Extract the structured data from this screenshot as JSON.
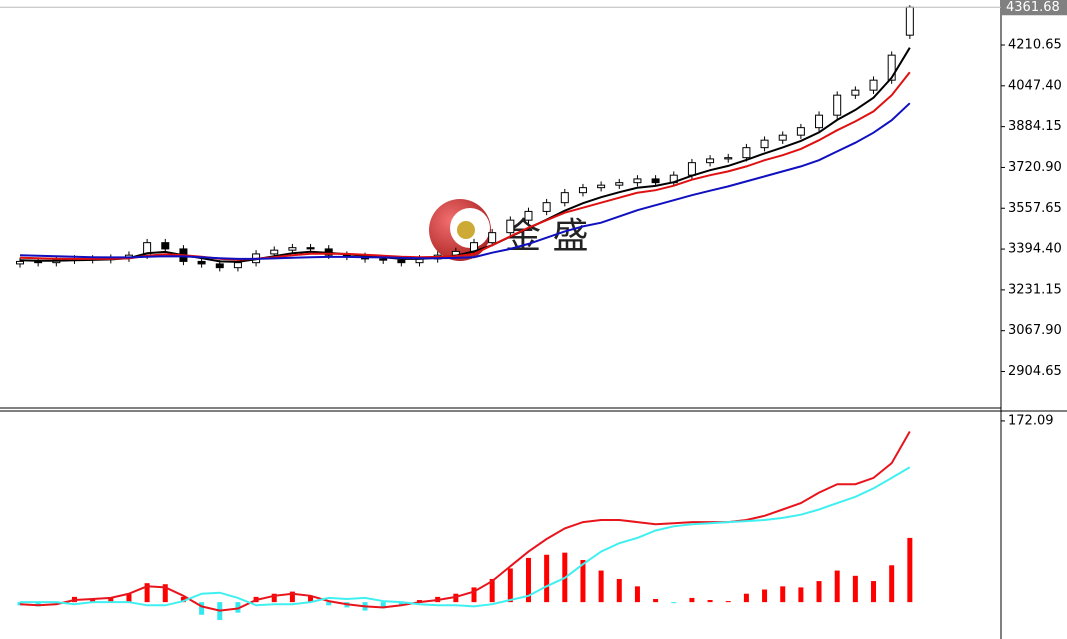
{
  "chart_data": [
    {
      "type": "candlestick",
      "watermark": "金 盛",
      "open": [
        3335,
        3345,
        3340,
        3350,
        3355,
        3352,
        3358,
        3370,
        3420,
        3395,
        3345,
        3335,
        3320,
        3340,
        3375,
        3390,
        3400,
        3395,
        3370,
        3365,
        3355,
        3350,
        3340,
        3355,
        3370,
        3385,
        3420,
        3460,
        3510,
        3545,
        3580,
        3620,
        3640,
        3650,
        3660,
        3675,
        3660,
        3690,
        3740,
        3755,
        3760,
        3800,
        3830,
        3850,
        3880,
        3930,
        4010,
        4030,
        4070,
        4250
      ],
      "high": [
        3360,
        3360,
        3365,
        3370,
        3370,
        3373,
        3385,
        3435,
        3435,
        3410,
        3360,
        3350,
        3355,
        3390,
        3405,
        3415,
        3415,
        3410,
        3385,
        3380,
        3370,
        3365,
        3370,
        3385,
        3400,
        3435,
        3475,
        3525,
        3560,
        3595,
        3635,
        3655,
        3665,
        3675,
        3690,
        3690,
        3705,
        3755,
        3770,
        3775,
        3815,
        3845,
        3865,
        3895,
        3945,
        4025,
        4045,
        4085,
        4185,
        4370
      ],
      "low": [
        3320,
        3325,
        3325,
        3335,
        3337,
        3337,
        3343,
        3355,
        3380,
        3330,
        3320,
        3305,
        3305,
        3325,
        3360,
        3375,
        3380,
        3355,
        3350,
        3340,
        3335,
        3325,
        3325,
        3340,
        3355,
        3370,
        3405,
        3445,
        3495,
        3530,
        3565,
        3605,
        3625,
        3635,
        3645,
        3645,
        3645,
        3675,
        3725,
        3740,
        3745,
        3785,
        3815,
        3835,
        3865,
        3915,
        3995,
        4015,
        4055,
        4235
      ],
      "close": [
        3345,
        3340,
        3350,
        3355,
        3352,
        3358,
        3370,
        3420,
        3395,
        3345,
        3335,
        3320,
        3340,
        3375,
        3390,
        3400,
        3395,
        3370,
        3365,
        3355,
        3350,
        3340,
        3355,
        3370,
        3385,
        3420,
        3460,
        3510,
        3545,
        3580,
        3620,
        3640,
        3650,
        3660,
        3675,
        3660,
        3690,
        3740,
        3755,
        3760,
        3800,
        3830,
        3850,
        3880,
        3930,
        4010,
        4030,
        4070,
        4170,
        4361.68
      ],
      "up_color": "#ffffff",
      "down_color": "#000000",
      "wick_color": "#000000",
      "series": [
        {
          "color": "#000000",
          "values": [
            3350,
            3348,
            3348,
            3350,
            3351,
            3353,
            3358,
            3378,
            3383,
            3370,
            3358,
            3345,
            3343,
            3354,
            3366,
            3378,
            3384,
            3379,
            3374,
            3368,
            3362,
            3355,
            3355,
            3360,
            3368,
            3385,
            3410,
            3444,
            3478,
            3512,
            3548,
            3578,
            3602,
            3622,
            3640,
            3647,
            3662,
            3688,
            3710,
            3727,
            3751,
            3777,
            3801,
            3827,
            3861,
            3911,
            3951,
            4000,
            4080,
            4200
          ]
        },
        {
          "color": "#e01010",
          "values": [
            3360,
            3358,
            3356,
            3355,
            3355,
            3355,
            3357,
            3368,
            3374,
            3370,
            3364,
            3356,
            3352,
            3356,
            3362,
            3370,
            3376,
            3376,
            3375,
            3372,
            3368,
            3364,
            3362,
            3363,
            3366,
            3375,
            3410,
            3445,
            3480,
            3510,
            3540,
            3560,
            3580,
            3600,
            3620,
            3630,
            3648,
            3672,
            3690,
            3705,
            3725,
            3750,
            3770,
            3795,
            3830,
            3870,
            3905,
            3945,
            4010,
            4102
          ]
        },
        {
          "color": "#1010c0",
          "values": [
            3370,
            3368,
            3366,
            3364,
            3362,
            3361,
            3361,
            3364,
            3366,
            3365,
            3362,
            3358,
            3355,
            3355,
            3357,
            3360,
            3362,
            3363,
            3363,
            3362,
            3361,
            3359,
            3358,
            3358,
            3359,
            3362,
            3380,
            3395,
            3415,
            3440,
            3465,
            3485,
            3500,
            3525,
            3550,
            3570,
            3590,
            3610,
            3628,
            3645,
            3665,
            3685,
            3705,
            3725,
            3750,
            3785,
            3820,
            3860,
            3910,
            3978
          ]
        }
      ],
      "ylim": [
        2758.65,
        4390.65
      ],
      "yticks": [
        4210.65,
        {
          "value": 4047.4,
          "label": "4047.40"
        },
        3884.15,
        {
          "value": 3720.9,
          "label": "3720.90"
        },
        3557.65,
        {
          "value": 3394.4,
          "label": "3394.40"
        },
        3231.15,
        {
          "value": 3067.9,
          "label": "3067.90"
        },
        2904.65
      ]
    },
    {
      "type": "macd",
      "series": [
        {
          "kind": "bar",
          "color": "#ff0000",
          "negative_color": "#33e8f0",
          "values": [
            -3,
            -4,
            -2,
            5,
            3,
            4,
            8,
            18,
            17,
            5,
            -12,
            -17,
            -10,
            5,
            8,
            10,
            6,
            -3,
            -5,
            -8,
            -6,
            -3,
            2,
            5,
            8,
            14,
            22,
            32,
            42,
            45,
            47,
            40,
            30,
            22,
            15,
            3,
            -1,
            4,
            2,
            1,
            8,
            12,
            15,
            14,
            20,
            30,
            25,
            20,
            35,
            61
          ]
        },
        {
          "kind": "line",
          "color": "#e8141c",
          "values": [
            -2,
            -3,
            -2,
            2,
            3,
            4,
            8,
            15,
            14,
            6,
            -4,
            -8,
            -6,
            2,
            6,
            8,
            6,
            1,
            -2,
            -4,
            -5,
            -3,
            0,
            2,
            5,
            10,
            20,
            34,
            48,
            60,
            70,
            76,
            78,
            78,
            76,
            74,
            75,
            76,
            76,
            76,
            78,
            82,
            88,
            94,
            104,
            112,
            112,
            118,
            132,
            162
          ]
        },
        {
          "kind": "line",
          "color": "#40f0f0",
          "values": [
            0,
            0,
            0,
            -2,
            0,
            0,
            0,
            -3,
            -3,
            1,
            8,
            9,
            4,
            -3,
            -2,
            -2,
            0,
            4,
            3,
            4,
            1,
            0,
            -2,
            -3,
            -3,
            -4,
            -2,
            2,
            6,
            15,
            23,
            36,
            48,
            56,
            61,
            68,
            72,
            74,
            75,
            76,
            77,
            78,
            80,
            83,
            88,
            94,
            100,
            108,
            118,
            128
          ]
        }
      ],
      "ylim": [
        -35,
        181.5
      ],
      "yticks": [
        172.09
      ]
    }
  ]
}
